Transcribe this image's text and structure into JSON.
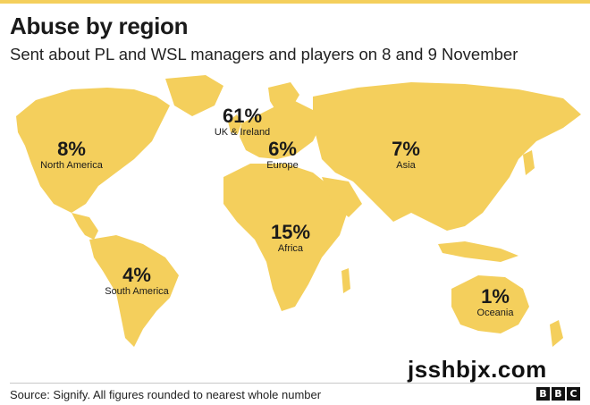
{
  "header": {
    "title": "Abuse by region",
    "subtitle": "Sent about PL and WSL managers and players on 8 and 9 November"
  },
  "colors": {
    "land": "#f4cf5c",
    "accent_bar": "#f4cf5c",
    "text": "#1a1a1a"
  },
  "regions": [
    {
      "name": "UK & Ireland",
      "value": "61%"
    },
    {
      "name": "North America",
      "value": "8%"
    },
    {
      "name": "Europe",
      "value": "6%"
    },
    {
      "name": "Asia",
      "value": "7%"
    },
    {
      "name": "Africa",
      "value": "15%"
    },
    {
      "name": "South America",
      "value": "4%"
    },
    {
      "name": "Oceania",
      "value": "1%"
    }
  ],
  "watermark": "jsshbjx.com",
  "footer": {
    "source": "Source: Signify. All figures rounded to nearest whole number",
    "logo_letters": [
      "B",
      "B",
      "C"
    ]
  }
}
